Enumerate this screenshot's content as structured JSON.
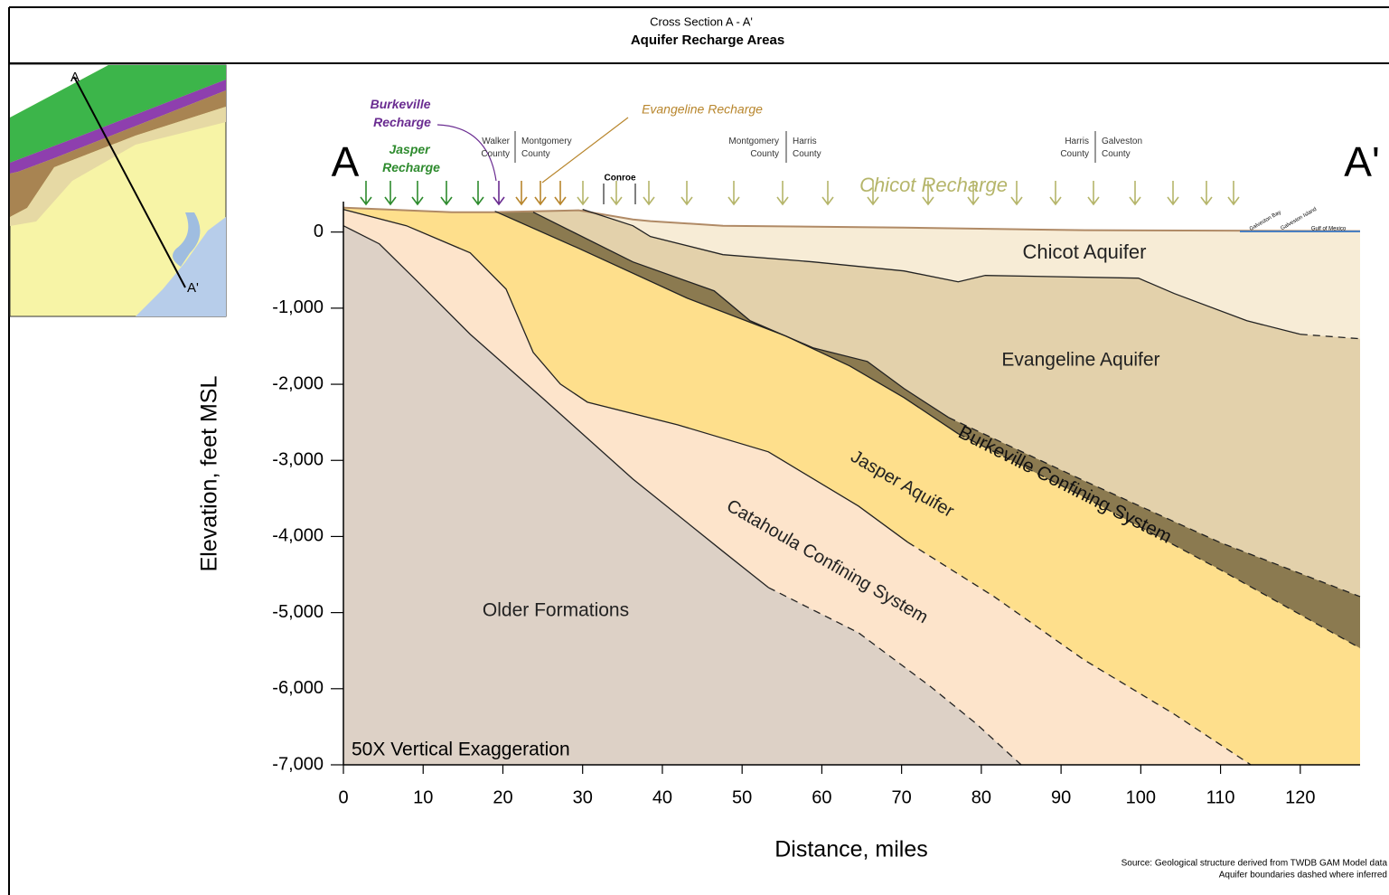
{
  "header": {
    "subtitle": "Cross Section A - A'",
    "title": "Aquifer Recharge Areas"
  },
  "chart_data": {
    "type": "cross-section",
    "xlabel": "Distance, miles",
    "ylabel": "Elevation, feet MSL",
    "note": "50X Vertical Exaggeration",
    "xlim": [
      0,
      127.5
    ],
    "ylim": [
      -7000,
      400
    ],
    "xticks": [
      0,
      10,
      20,
      30,
      40,
      50,
      60,
      70,
      80,
      90,
      100,
      110,
      120
    ],
    "yticks": [
      0,
      {
        "value": -1000,
        "label": "-1,000"
      },
      {
        "value": -2000,
        "label": "-2,000"
      },
      {
        "value": -3000,
        "label": "-3,000"
      },
      {
        "value": -4000,
        "label": "-4,000"
      },
      {
        "value": -5000,
        "label": "-5,000"
      },
      {
        "value": -6000,
        "label": "-6,000"
      },
      {
        "value": -7000,
        "label": "-7,000"
      }
    ],
    "layers": [
      {
        "name": "Chicot Aquifer",
        "color": "#f7ecd6",
        "line_color": "#b08a66",
        "top": {
          "x": [
            0,
            13.6,
            18.7,
            29.5,
            36.3,
            38.5,
            47.6,
            70.3,
            92.9,
            127.5
          ],
          "y": [
            321,
            261,
            261,
            285,
            166,
            143,
            83,
            59,
            24,
            12
          ]
        }
      },
      {
        "name": "Evangeline Aquifer",
        "color": "#e3d1ab",
        "line_color": "#222222",
        "dashed_from": 120,
        "top": {
          "x": [
            30.0,
            36.3,
            38.5,
            47.6,
            58.9,
            70.3,
            77.1,
            80.5,
            99.7,
            104.2,
            113.3,
            120,
            127.5
          ],
          "y": [
            297,
            83,
            -59,
            -297,
            -392,
            -511,
            -654,
            -570,
            -606,
            -808,
            -1165,
            -1343,
            -1402
          ]
        }
      },
      {
        "name": "Burkeville Confining System",
        "color": "#8b7a50",
        "line_color": "#222222",
        "dashed_from": 75.9,
        "top": {
          "x": [
            23.8,
            36.3,
            46.5,
            51.0,
            58.9,
            65.7,
            70.3,
            75.9,
            92.9,
            109.9,
            127.5
          ],
          "y": [
            261,
            -392,
            -773,
            -1165,
            -1521,
            -1700,
            -2056,
            -2437,
            -3269,
            -4077,
            -4790
          ]
        }
      },
      {
        "name": "Jasper Aquifer",
        "color": "#fedf8c",
        "line_color": "#222222",
        "dashed_from": 77.1,
        "top": {
          "x": [
            19.0,
            29.5,
            43.1,
            55.5,
            63.5,
            70.3,
            77.1,
            92.9,
            109.9,
            127.5
          ],
          "y": [
            273,
            -214,
            -868,
            -1367,
            -1759,
            -2175,
            -2650,
            -3482,
            -4433,
            -5467
          ]
        }
      },
      {
        "name": "Catahoula Confining System",
        "color": "#fde4cb",
        "line_color": "#222222",
        "dashed_from": 70.8,
        "top": {
          "x": [
            0,
            7.9,
            15.9,
            20.4,
            23.8,
            27.2,
            30.6,
            41.9,
            53.3,
            64.6,
            70.8,
            81.6,
            92.9,
            104.2,
            113.8
          ],
          "y": [
            297,
            83,
            -273,
            -749,
            -1581,
            -1997,
            -2235,
            -2532,
            -2888,
            -3601,
            -4077,
            -4790,
            -5622,
            -6335,
            -7000
          ]
        }
      },
      {
        "name": "Older Formations",
        "color": "#ddd1c6",
        "line_color": "#222222",
        "dashed_from": 53.3,
        "top": {
          "x": [
            0,
            4.5,
            9.1,
            15.9,
            24.9,
            36.3,
            47.6,
            53.3,
            64.6,
            73.7,
            79.3,
            85.0
          ],
          "y": [
            83,
            -155,
            -630,
            -1343,
            -2175,
            -3245,
            -4196,
            -4671,
            -5265,
            -5978,
            -6454,
            -7000
          ]
        }
      }
    ]
  },
  "section_ends": [
    "A",
    "A'"
  ],
  "recharge": {
    "burkeville": [
      "Burkeville",
      "Recharge"
    ],
    "jasper": [
      "Jasper",
      "Recharge"
    ],
    "evangeline": "Evangeline Recharge",
    "chicot": "Chicot Recharge"
  },
  "counties": [
    [
      "Walker",
      "County"
    ],
    [
      "Montgomery",
      "County"
    ],
    [
      "Montgomery",
      "County"
    ],
    [
      "Harris",
      "County"
    ],
    [
      "Harris",
      "County"
    ],
    [
      "Galveston",
      "County"
    ]
  ],
  "town": "Conroe",
  "coast_labels": [
    "Galveston Bay",
    "Galveston Island",
    "Gulf of Mexico"
  ],
  "map": {
    "start": "A",
    "end": "A'"
  },
  "source": [
    "Source: Geological structure derived from TWDB GAM Model data",
    "Aquifer boundaries dashed where inferred"
  ]
}
